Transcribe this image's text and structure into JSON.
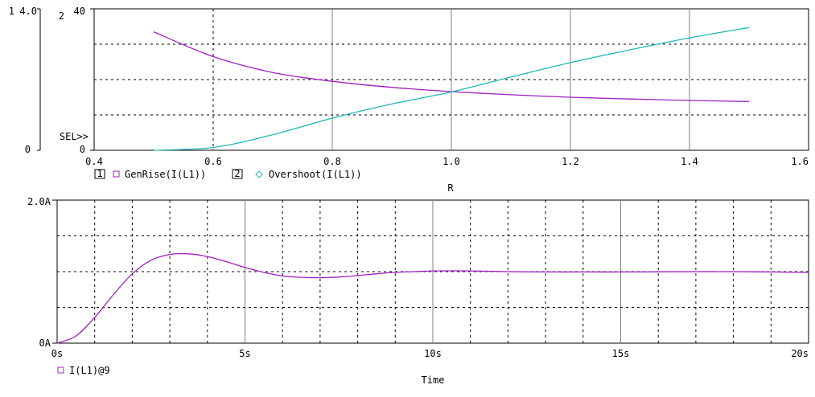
{
  "chart_data": [
    {
      "type": "line",
      "xlabel": "R",
      "xlim": [
        0.4,
        1.6
      ],
      "x_ticks": [
        "0.4",
        "0.6",
        "0.8",
        "1.0",
        "1.2",
        "1.4",
        "1.6"
      ],
      "axes": [
        {
          "id": "1",
          "ylim": [
            0,
            4.0
          ],
          "y_ticks": [
            "4.0"
          ]
        },
        {
          "id": "2",
          "ylim": [
            0,
            40
          ],
          "y_ticks": [
            "40",
            "0"
          ]
        }
      ],
      "axis_labels": {
        "axis1": "1",
        "axis2": "2"
      },
      "sel_marker": "SEL>>",
      "grid": true,
      "legend": [
        {
          "axis": "1",
          "marker": "square",
          "label": "GenRise(I(L1))"
        },
        {
          "axis": "2",
          "marker": "diamond",
          "label": "Overshoot(I(L1))"
        }
      ],
      "series": [
        {
          "name": "GenRise(I(L1))",
          "axis": "1",
          "color": "#a020c0",
          "x": [
            0.5,
            0.6,
            0.7,
            0.8,
            0.9,
            1.0,
            1.1,
            1.2,
            1.3,
            1.4,
            1.5
          ],
          "values": [
            3.35,
            2.65,
            2.2,
            1.95,
            1.78,
            1.66,
            1.57,
            1.5,
            1.45,
            1.41,
            1.38
          ]
        },
        {
          "name": "Overshoot(I(L1))",
          "axis": "2",
          "color": "#20b8b8",
          "x": [
            0.5,
            0.6,
            0.7,
            0.8,
            0.9,
            1.0,
            1.1,
            1.2,
            1.3,
            1.4,
            1.5
          ],
          "values": [
            0.0,
            0.8,
            4.4,
            9.1,
            13.1,
            16.5,
            20.7,
            24.8,
            28.4,
            31.8,
            34.7
          ]
        }
      ]
    },
    {
      "type": "line",
      "xlabel": "Time",
      "xlim": [
        0,
        20
      ],
      "x_ticks": [
        "0s",
        "5s",
        "10s",
        "15s",
        "20s"
      ],
      "ylim": [
        0,
        2.0
      ],
      "y_ticks": [
        "2.0A",
        "0A"
      ],
      "grid": true,
      "legend": [
        {
          "marker": "square",
          "label": "I(L1)@9"
        }
      ],
      "series": [
        {
          "name": "I(L1)@9",
          "color": "#a020c0",
          "x": [
            0,
            0.5,
            1.0,
            1.5,
            2.0,
            2.5,
            3.0,
            3.5,
            4.0,
            4.5,
            5.0,
            5.5,
            6.0,
            6.5,
            7.0,
            7.5,
            8.0,
            8.5,
            9.0,
            9.5,
            10.0,
            11.0,
            12.0,
            13.0,
            14.0,
            15.0,
            16.0,
            17.0,
            18.0,
            19.0,
            20.0
          ],
          "values": [
            0.0,
            0.1,
            0.36,
            0.68,
            0.97,
            1.16,
            1.24,
            1.25,
            1.21,
            1.14,
            1.06,
            0.99,
            0.94,
            0.92,
            0.915,
            0.925,
            0.945,
            0.97,
            0.99,
            1.0,
            1.01,
            1.01,
            1.0,
            0.995,
            0.995,
            0.995,
            0.998,
            1.0,
            1.0,
            0.995,
            0.99
          ]
        }
      ]
    }
  ]
}
